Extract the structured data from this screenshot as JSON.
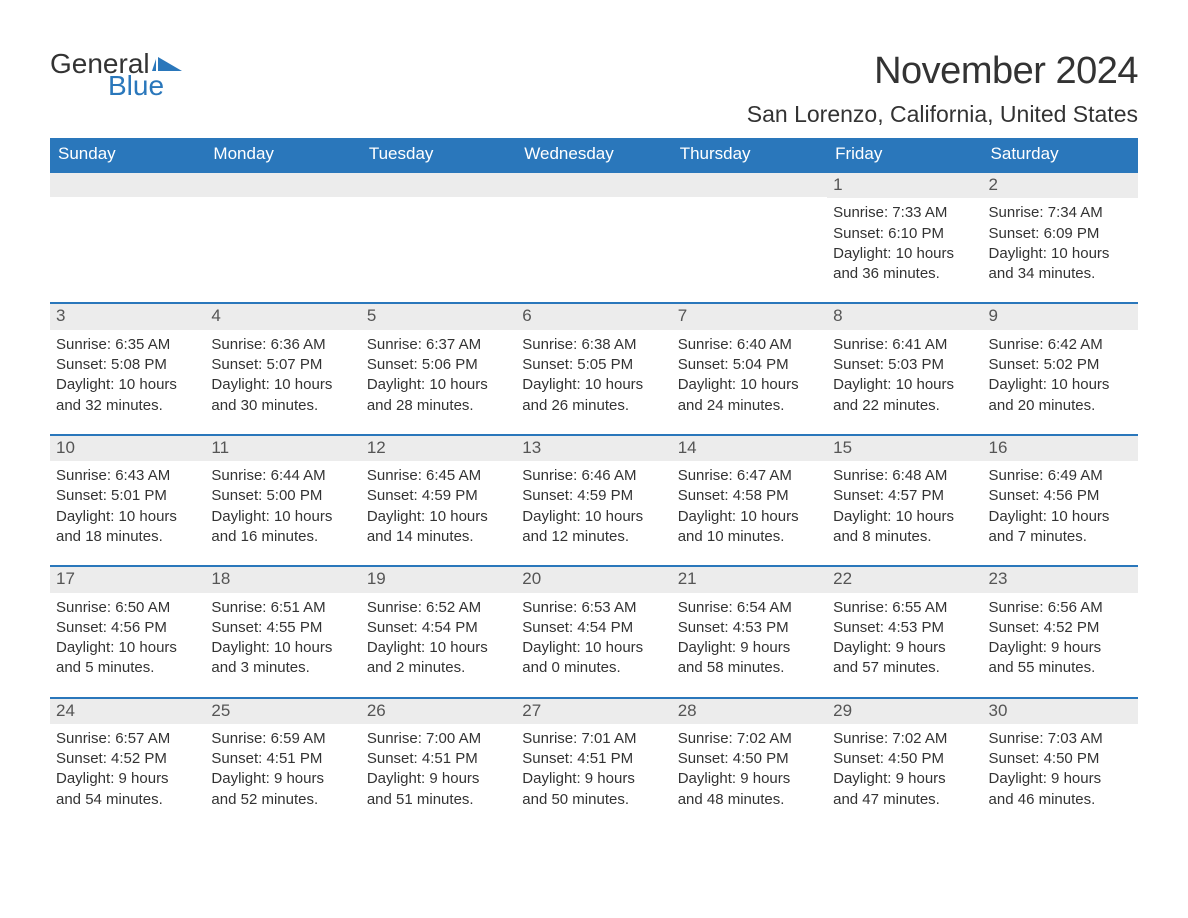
{
  "brand": {
    "text_general": "General",
    "text_blue": "Blue",
    "flag_color": "#2a77bb"
  },
  "header": {
    "month_title": "November 2024",
    "location": "San Lorenzo, California, United States"
  },
  "theme": {
    "header_bg": "#2a77bb",
    "header_text": "#ffffff",
    "daynum_bg": "#ececec",
    "text_color": "#333333",
    "border_color": "#2a77bb",
    "page_bg": "#ffffff",
    "body_font_size": 15,
    "title_font_size": 38,
    "location_font_size": 23,
    "dow_font_size": 17
  },
  "days_of_week": [
    "Sunday",
    "Monday",
    "Tuesday",
    "Wednesday",
    "Thursday",
    "Friday",
    "Saturday"
  ],
  "layout": {
    "columns": 7,
    "first_day_column_index": 5,
    "days_in_month": 30,
    "weeks": 5
  },
  "days": {
    "1": {
      "sunrise": "Sunrise: 7:33 AM",
      "sunset": "Sunset: 6:10 PM",
      "dl1": "Daylight: 10 hours",
      "dl2": "and 36 minutes."
    },
    "2": {
      "sunrise": "Sunrise: 7:34 AM",
      "sunset": "Sunset: 6:09 PM",
      "dl1": "Daylight: 10 hours",
      "dl2": "and 34 minutes."
    },
    "3": {
      "sunrise": "Sunrise: 6:35 AM",
      "sunset": "Sunset: 5:08 PM",
      "dl1": "Daylight: 10 hours",
      "dl2": "and 32 minutes."
    },
    "4": {
      "sunrise": "Sunrise: 6:36 AM",
      "sunset": "Sunset: 5:07 PM",
      "dl1": "Daylight: 10 hours",
      "dl2": "and 30 minutes."
    },
    "5": {
      "sunrise": "Sunrise: 6:37 AM",
      "sunset": "Sunset: 5:06 PM",
      "dl1": "Daylight: 10 hours",
      "dl2": "and 28 minutes."
    },
    "6": {
      "sunrise": "Sunrise: 6:38 AM",
      "sunset": "Sunset: 5:05 PM",
      "dl1": "Daylight: 10 hours",
      "dl2": "and 26 minutes."
    },
    "7": {
      "sunrise": "Sunrise: 6:40 AM",
      "sunset": "Sunset: 5:04 PM",
      "dl1": "Daylight: 10 hours",
      "dl2": "and 24 minutes."
    },
    "8": {
      "sunrise": "Sunrise: 6:41 AM",
      "sunset": "Sunset: 5:03 PM",
      "dl1": "Daylight: 10 hours",
      "dl2": "and 22 minutes."
    },
    "9": {
      "sunrise": "Sunrise: 6:42 AM",
      "sunset": "Sunset: 5:02 PM",
      "dl1": "Daylight: 10 hours",
      "dl2": "and 20 minutes."
    },
    "10": {
      "sunrise": "Sunrise: 6:43 AM",
      "sunset": "Sunset: 5:01 PM",
      "dl1": "Daylight: 10 hours",
      "dl2": "and 18 minutes."
    },
    "11": {
      "sunrise": "Sunrise: 6:44 AM",
      "sunset": "Sunset: 5:00 PM",
      "dl1": "Daylight: 10 hours",
      "dl2": "and 16 minutes."
    },
    "12": {
      "sunrise": "Sunrise: 6:45 AM",
      "sunset": "Sunset: 4:59 PM",
      "dl1": "Daylight: 10 hours",
      "dl2": "and 14 minutes."
    },
    "13": {
      "sunrise": "Sunrise: 6:46 AM",
      "sunset": "Sunset: 4:59 PM",
      "dl1": "Daylight: 10 hours",
      "dl2": "and 12 minutes."
    },
    "14": {
      "sunrise": "Sunrise: 6:47 AM",
      "sunset": "Sunset: 4:58 PM",
      "dl1": "Daylight: 10 hours",
      "dl2": "and 10 minutes."
    },
    "15": {
      "sunrise": "Sunrise: 6:48 AM",
      "sunset": "Sunset: 4:57 PM",
      "dl1": "Daylight: 10 hours",
      "dl2": "and 8 minutes."
    },
    "16": {
      "sunrise": "Sunrise: 6:49 AM",
      "sunset": "Sunset: 4:56 PM",
      "dl1": "Daylight: 10 hours",
      "dl2": "and 7 minutes."
    },
    "17": {
      "sunrise": "Sunrise: 6:50 AM",
      "sunset": "Sunset: 4:56 PM",
      "dl1": "Daylight: 10 hours",
      "dl2": "and 5 minutes."
    },
    "18": {
      "sunrise": "Sunrise: 6:51 AM",
      "sunset": "Sunset: 4:55 PM",
      "dl1": "Daylight: 10 hours",
      "dl2": "and 3 minutes."
    },
    "19": {
      "sunrise": "Sunrise: 6:52 AM",
      "sunset": "Sunset: 4:54 PM",
      "dl1": "Daylight: 10 hours",
      "dl2": "and 2 minutes."
    },
    "20": {
      "sunrise": "Sunrise: 6:53 AM",
      "sunset": "Sunset: 4:54 PM",
      "dl1": "Daylight: 10 hours",
      "dl2": "and 0 minutes."
    },
    "21": {
      "sunrise": "Sunrise: 6:54 AM",
      "sunset": "Sunset: 4:53 PM",
      "dl1": "Daylight: 9 hours",
      "dl2": "and 58 minutes."
    },
    "22": {
      "sunrise": "Sunrise: 6:55 AM",
      "sunset": "Sunset: 4:53 PM",
      "dl1": "Daylight: 9 hours",
      "dl2": "and 57 minutes."
    },
    "23": {
      "sunrise": "Sunrise: 6:56 AM",
      "sunset": "Sunset: 4:52 PM",
      "dl1": "Daylight: 9 hours",
      "dl2": "and 55 minutes."
    },
    "24": {
      "sunrise": "Sunrise: 6:57 AM",
      "sunset": "Sunset: 4:52 PM",
      "dl1": "Daylight: 9 hours",
      "dl2": "and 54 minutes."
    },
    "25": {
      "sunrise": "Sunrise: 6:59 AM",
      "sunset": "Sunset: 4:51 PM",
      "dl1": "Daylight: 9 hours",
      "dl2": "and 52 minutes."
    },
    "26": {
      "sunrise": "Sunrise: 7:00 AM",
      "sunset": "Sunset: 4:51 PM",
      "dl1": "Daylight: 9 hours",
      "dl2": "and 51 minutes."
    },
    "27": {
      "sunrise": "Sunrise: 7:01 AM",
      "sunset": "Sunset: 4:51 PM",
      "dl1": "Daylight: 9 hours",
      "dl2": "and 50 minutes."
    },
    "28": {
      "sunrise": "Sunrise: 7:02 AM",
      "sunset": "Sunset: 4:50 PM",
      "dl1": "Daylight: 9 hours",
      "dl2": "and 48 minutes."
    },
    "29": {
      "sunrise": "Sunrise: 7:02 AM",
      "sunset": "Sunset: 4:50 PM",
      "dl1": "Daylight: 9 hours",
      "dl2": "and 47 minutes."
    },
    "30": {
      "sunrise": "Sunrise: 7:03 AM",
      "sunset": "Sunset: 4:50 PM",
      "dl1": "Daylight: 9 hours",
      "dl2": "and 46 minutes."
    }
  }
}
